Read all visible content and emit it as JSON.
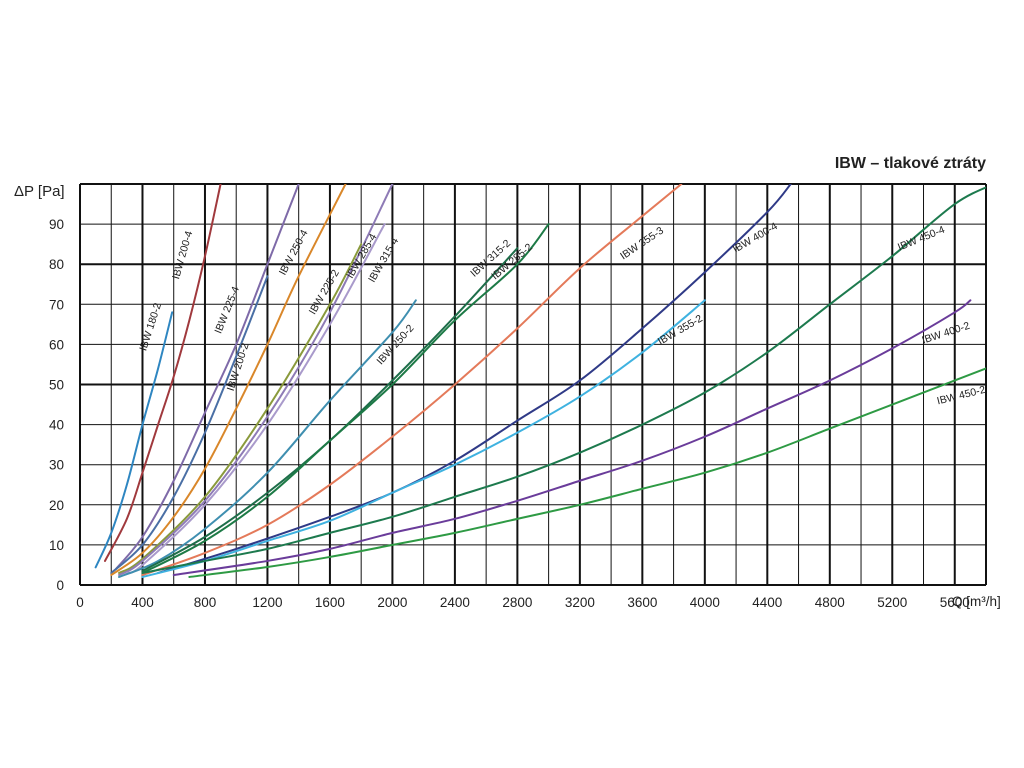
{
  "chart_data": {
    "type": "line",
    "title": "IBW – tlakové ztráty",
    "ylabel": "ΔP [Pa]",
    "xlabel": "Q [m³/h]",
    "xlim": [
      0,
      5800
    ],
    "ylim": [
      0,
      100
    ],
    "x_ticks": [
      0,
      400,
      800,
      1200,
      1600,
      2000,
      2400,
      2800,
      3200,
      3600,
      4000,
      4400,
      4800,
      5200,
      5600
    ],
    "y_ticks": [
      0,
      10,
      20,
      30,
      40,
      50,
      60,
      70,
      80,
      90
    ],
    "x_tick_labels": [
      "0",
      "400",
      "800",
      "1200",
      "1600",
      "2000",
      "2400",
      "2800",
      "3200",
      "3600",
      "4000",
      "4400",
      "4800",
      "5200",
      "5600"
    ],
    "y_tick_labels": [
      "0",
      "10",
      "20",
      "30",
      "40",
      "50",
      "60",
      "70",
      "80",
      "90"
    ],
    "grid": true,
    "series": [
      {
        "name": "IBW 180-2",
        "color": "#2e86c1",
        "x": [
          100,
          200,
          300,
          400,
          500,
          590
        ],
        "y": [
          4.4,
          13,
          25,
          40,
          54,
          68
        ]
      },
      {
        "name": "IBW 200-4",
        "color": "#a0393d",
        "x": [
          160,
          300,
          400,
          500,
          600,
          700,
          800,
          900
        ],
        "y": [
          6,
          16.5,
          28,
          40,
          52,
          66,
          82,
          100
        ]
      },
      {
        "name": "IBW 225-4",
        "color": "#7e6aa8",
        "x": [
          230,
          400,
          600,
          800,
          1000,
          1200,
          1400
        ],
        "y": [
          4,
          12,
          26,
          43,
          60,
          80,
          100
        ]
      },
      {
        "name": "IBW 200-2",
        "color": "#4a6fa5",
        "x": [
          200,
          400,
          600,
          800,
          1000,
          1200
        ],
        "y": [
          3,
          10,
          22,
          38,
          57,
          77
        ]
      },
      {
        "name": "IBW 250-4",
        "color": "#d9872a",
        "x": [
          200,
          400,
          600,
          800,
          1000,
          1200,
          1400,
          1700
        ],
        "y": [
          2.5,
          8,
          17,
          29,
          44,
          60,
          77,
          100
        ]
      },
      {
        "name": "IBW 225-2",
        "color": "#8a9a3c",
        "x": [
          250,
          400,
          800,
          1200,
          1600,
          1800
        ],
        "y": [
          3,
          6.5,
          22,
          44,
          70,
          85
        ]
      },
      {
        "name": "IBW 285-4",
        "color": "#8e7bb6",
        "x": [
          250,
          400,
          800,
          1200,
          1600,
          2000
        ],
        "y": [
          2.5,
          6,
          21,
          42,
          68,
          100
        ]
      },
      {
        "name": "IBW 315-4",
        "color": "#a99acb",
        "x": [
          300,
          400,
          800,
          1200,
          1600,
          1950
        ],
        "y": [
          3,
          5,
          20,
          40,
          65,
          90
        ]
      },
      {
        "name": "IBW 250-2",
        "color": "#3f8fb0",
        "x": [
          250,
          500,
          800,
          1200,
          1600,
          2000,
          2150
        ],
        "y": [
          2,
          6,
          14,
          28,
          46,
          63,
          71
        ]
      },
      {
        "name": "IBW 315-2",
        "color": "#1e6e4a",
        "x": [
          400,
          800,
          1200,
          1600,
          2000,
          2400,
          2800
        ],
        "y": [
          3.5,
          12,
          23,
          36,
          51,
          67,
          84
        ]
      },
      {
        "name": "IBW 285-2",
        "color": "#1d7a46",
        "x": [
          400,
          800,
          1200,
          1600,
          2000,
          2400,
          2800,
          3000
        ],
        "y": [
          3,
          11,
          22,
          36,
          50,
          66,
          80,
          90
        ]
      },
      {
        "name": "IBW 355-3",
        "color": "#e47a5a",
        "x": [
          400,
          800,
          1200,
          1600,
          2000,
          2400,
          2800,
          3200,
          3600,
          3850
        ],
        "y": [
          2.5,
          8,
          15,
          25,
          37,
          50,
          64,
          79,
          92,
          100
        ]
      },
      {
        "name": "IBW 400-4",
        "color": "#2f3a87",
        "x": [
          500,
          1000,
          1600,
          2000,
          2400,
          2800,
          3200,
          3600,
          4000,
          4400,
          4550
        ],
        "y": [
          3,
          9,
          17,
          23,
          31,
          41,
          51,
          64,
          78,
          93,
          100
        ]
      },
      {
        "name": "IBW 355-2",
        "color": "#3fb2e0",
        "x": [
          400,
          800,
          1200,
          1600,
          2000,
          2400,
          2800,
          3200,
          3600,
          4000
        ],
        "y": [
          2,
          6,
          11,
          16,
          23,
          30,
          38,
          47,
          58,
          71
        ]
      },
      {
        "name": "IBW 450-4",
        "color": "#1d7a4e",
        "x": [
          400,
          800,
          1200,
          1600,
          2000,
          2400,
          2800,
          3200,
          3600,
          4000,
          4400,
          4800,
          5200,
          5600,
          5850
        ],
        "y": [
          3,
          6,
          9,
          13,
          17,
          22,
          27,
          33,
          40,
          48,
          58,
          70,
          82,
          95,
          100
        ]
      },
      {
        "name": "IBW 400-2",
        "color": "#6a3c9a",
        "x": [
          600,
          1200,
          1600,
          2000,
          2400,
          2800,
          3200,
          3600,
          4000,
          4400,
          4800,
          5200,
          5600,
          5700
        ],
        "y": [
          2.5,
          6,
          9,
          13,
          16.5,
          21,
          26,
          31,
          37,
          44,
          51,
          59,
          68,
          71
        ]
      },
      {
        "name": "IBW 450-2",
        "color": "#2e9a44",
        "x": [
          700,
          1200,
          1600,
          2000,
          2400,
          2800,
          3200,
          3600,
          4000,
          4400,
          4800,
          5200,
          5600,
          5800
        ],
        "y": [
          2,
          4.5,
          7,
          10,
          13,
          16.5,
          20,
          24,
          28,
          33,
          39,
          45,
          51,
          54
        ]
      }
    ],
    "label_positions_note": ""
  }
}
